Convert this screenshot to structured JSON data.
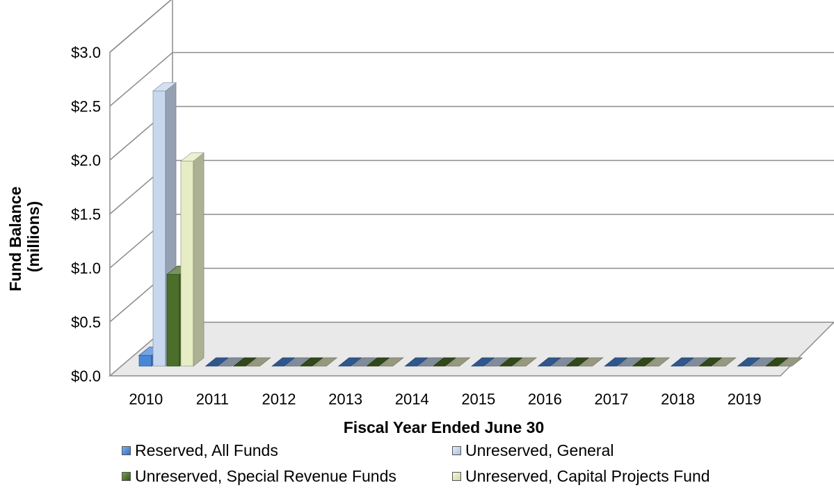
{
  "chart_data": {
    "type": "bar",
    "style": "3d-clustered-column",
    "categories": [
      "2010",
      "2011",
      "2012",
      "2013",
      "2014",
      "2015",
      "2016",
      "2017",
      "2018",
      "2019"
    ],
    "series": [
      {
        "name": "Reserved, All Funds",
        "color": "#4a86d8",
        "values": [
          0.1,
          0,
          0,
          0,
          0,
          0,
          0,
          0,
          0,
          0
        ]
      },
      {
        "name": "Unreserved, General",
        "color": "#c6d7ee",
        "values": [
          2.55,
          0,
          0,
          0,
          0,
          0,
          0,
          0,
          0,
          0
        ]
      },
      {
        "name": "Unreserved, Special Revenue Funds",
        "color": "#4b6e2a",
        "values": [
          0.85,
          0,
          0,
          0,
          0,
          0,
          0,
          0,
          0,
          0
        ]
      },
      {
        "name": "Unreserved, Capital Projects Fund",
        "color": "#e6ecc4",
        "values": [
          1.9,
          0,
          0,
          0,
          0,
          0,
          0,
          0,
          0,
          0
        ]
      }
    ],
    "yticks": [
      "$0.0",
      "$0.5",
      "$1.0",
      "$1.5",
      "$2.0",
      "$2.5",
      "$3.0"
    ],
    "ylim": [
      0,
      3.0
    ],
    "xlabel": "Fiscal Year Ended June 30",
    "ylabel_lines": [
      "Fund Balance",
      "(millions)"
    ],
    "grid": true,
    "legend_position": "bottom"
  }
}
